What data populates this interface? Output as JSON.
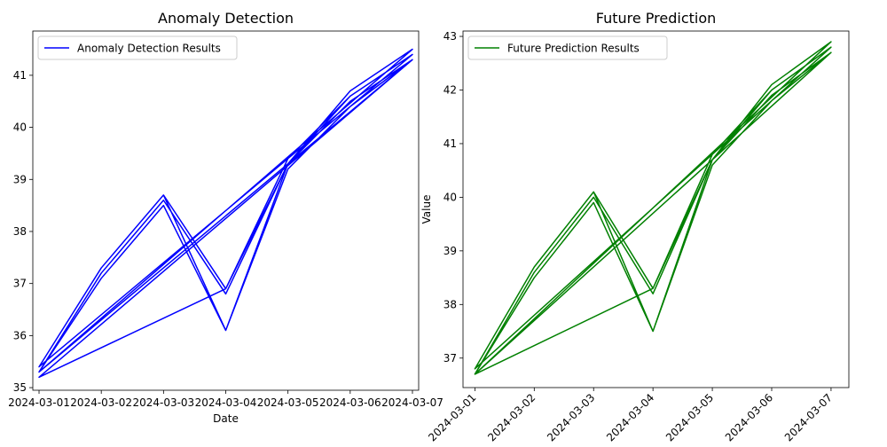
{
  "chart_data": [
    {
      "type": "line",
      "title": "Anomaly Detection",
      "xlabel": "Date",
      "ylabel": "",
      "x_ticks": [
        "2024-03-01",
        "2024-03-02",
        "2024-03-03",
        "2024-03-04",
        "2024-03-05",
        "2024-03-06",
        "2024-03-07"
      ],
      "x_tick_rotation": 0,
      "y_ticks": [
        35,
        36,
        37,
        38,
        39,
        40,
        41
      ],
      "xlim": [
        -0.1,
        6.1
      ],
      "ylim": [
        34.95,
        41.85
      ],
      "grid": false,
      "legend_position": "upper left",
      "color": "#0000ff",
      "series": [
        {
          "name": "Anomaly Detection Results",
          "points": [
            [
              0,
              35.4
            ],
            [
              1,
              37.3
            ],
            [
              2,
              38.7
            ],
            [
              3,
              36.9
            ],
            [
              4,
              39.3
            ],
            [
              5,
              40.7
            ],
            [
              6,
              41.5
            ],
            [
              0,
              35.3
            ],
            [
              1,
              37.2
            ],
            [
              2,
              38.6
            ],
            [
              3,
              36.8
            ],
            [
              4,
              39.3
            ],
            [
              5,
              40.6
            ],
            [
              6,
              41.4
            ],
            [
              0,
              35.4
            ],
            [
              1,
              37.3
            ],
            [
              2,
              38.7
            ],
            [
              3,
              36.1
            ],
            [
              4,
              39.3
            ],
            [
              5,
              40.5
            ],
            [
              6,
              41.3
            ],
            [
              0,
              35.3
            ],
            [
              1,
              37.1
            ],
            [
              2,
              38.5
            ],
            [
              3,
              36.1
            ],
            [
              4,
              39.2
            ],
            [
              5,
              40.4
            ],
            [
              6,
              41.3
            ],
            [
              0,
              35.2
            ],
            [
              3,
              36.9
            ],
            [
              4,
              39.4
            ],
            [
              5,
              40.6
            ],
            [
              6,
              41.4
            ]
          ]
        }
      ]
    },
    {
      "type": "line",
      "title": "Future Prediction",
      "xlabel": "",
      "ylabel": "Value",
      "x_ticks": [
        "2024-03-01",
        "2024-03-02",
        "2024-03-03",
        "2024-03-04",
        "2024-03-05",
        "2024-03-06",
        "2024-03-07"
      ],
      "x_tick_rotation": -45,
      "y_ticks": [
        37,
        38,
        39,
        40,
        41,
        42,
        43
      ],
      "xlim": [
        -0.2,
        6.3
      ],
      "ylim": [
        36.45,
        43.1
      ],
      "grid": false,
      "legend_position": "upper left",
      "color": "#008000",
      "series": [
        {
          "name": "Future Prediction Results",
          "points": [
            [
              0,
              36.8
            ],
            [
              1,
              38.7
            ],
            [
              2,
              40.1
            ],
            [
              3,
              38.3
            ],
            [
              4,
              40.7
            ],
            [
              5,
              42.1
            ],
            [
              6,
              42.9
            ],
            [
              0,
              36.7
            ],
            [
              1,
              38.6
            ],
            [
              2,
              40.0
            ],
            [
              3,
              38.2
            ],
            [
              4,
              40.7
            ],
            [
              5,
              42.0
            ],
            [
              6,
              42.8
            ],
            [
              0,
              36.8
            ],
            [
              1,
              38.7
            ],
            [
              2,
              40.1
            ],
            [
              3,
              37.5
            ],
            [
              4,
              40.7
            ],
            [
              5,
              41.9
            ],
            [
              6,
              42.7
            ],
            [
              0,
              36.7
            ],
            [
              1,
              38.5
            ],
            [
              2,
              39.9
            ],
            [
              3,
              37.5
            ],
            [
              4,
              40.6
            ],
            [
              5,
              41.8
            ],
            [
              6,
              42.7
            ],
            [
              0,
              36.7
            ],
            [
              3,
              38.3
            ],
            [
              4,
              40.8
            ],
            [
              5,
              42.0
            ],
            [
              6,
              42.8
            ]
          ]
        }
      ]
    }
  ]
}
